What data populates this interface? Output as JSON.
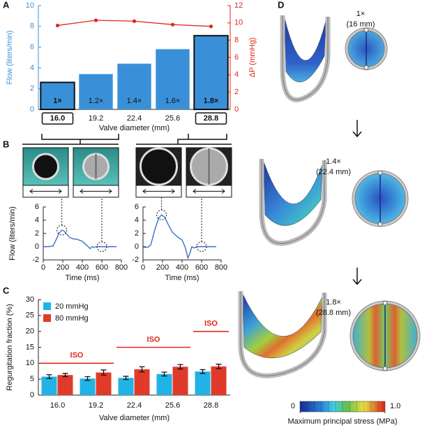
{
  "chart_data": [
    {
      "type": "bar",
      "xlabel": "Valve diameter (mm)",
      "ylabel": "Flow (liters/min)",
      "y2label": "ΔP (mmHg)",
      "categories": [
        "16.0",
        "19.2",
        "22.4",
        "25.6",
        "28.8"
      ],
      "bar_labels": [
        "1×",
        "1.2×",
        "1.4×",
        "1.6×",
        "1.8×"
      ],
      "series": [
        {
          "color": "#3a90d8",
          "values": [
            2.6,
            3.4,
            4.4,
            5.8,
            7.1
          ]
        },
        {
          "type": "line",
          "axis": "y2",
          "color": "#e0261b",
          "values": [
            9.7,
            10.3,
            10.2,
            9.8,
            9.6
          ]
        }
      ],
      "ylim": [
        0,
        10
      ],
      "yticks": [
        0,
        2,
        4,
        6,
        8,
        10
      ],
      "y2lim": [
        0,
        12
      ],
      "y2ticks": [
        0,
        2,
        4,
        6,
        8,
        10,
        12
      ]
    },
    {
      "type": "line",
      "xlabel": "Time (ms)",
      "ylabel": "Flow (liters/min)",
      "color": "#3a70c8",
      "x": [
        0,
        50,
        100,
        130,
        160,
        190,
        210,
        240,
        270,
        300,
        350,
        400,
        430,
        460,
        480,
        500,
        520,
        550,
        600,
        650,
        700,
        750
      ],
      "values": [
        0,
        0,
        0.1,
        1.0,
        2.0,
        2.5,
        2.4,
        1.9,
        1.4,
        1.2,
        1.1,
        0.8,
        0.4,
        0,
        -0.3,
        0,
        -0.1,
        0,
        0,
        0,
        0,
        0
      ],
      "xlim": [
        0,
        800
      ],
      "xticks": [
        0,
        200,
        400,
        600,
        800
      ],
      "ylim": [
        -2,
        6
      ],
      "yticks": [
        -2,
        0,
        2,
        4,
        6
      ]
    },
    {
      "type": "line",
      "xlabel": "Time (ms)",
      "color": "#3a70c8",
      "x": [
        0,
        50,
        80,
        120,
        160,
        190,
        220,
        260,
        300,
        350,
        400,
        430,
        460,
        480,
        500,
        520,
        550,
        600,
        650,
        700,
        750
      ],
      "values": [
        -0.1,
        -0.1,
        0.3,
        2.5,
        4.3,
        4.8,
        4.5,
        3.3,
        2.2,
        1.5,
        1.0,
        0,
        -1.7,
        -1.0,
        0,
        -0.2,
        0,
        0,
        0,
        0,
        0
      ],
      "xlim": [
        0,
        800
      ],
      "xticks": [
        0,
        200,
        400,
        600,
        800
      ],
      "ylim": [
        -2,
        6
      ],
      "yticks": [
        -2,
        0,
        2,
        4,
        6
      ]
    },
    {
      "type": "grouped-bar",
      "xlabel": "Valve diameter (mm)",
      "ylabel": "Regurgitation fraction (%)",
      "categories": [
        "16.0",
        "19.2",
        "22.4",
        "25.6",
        "28.8"
      ],
      "series": [
        {
          "name": "20 mmHg",
          "color": "#21b3e6",
          "values": [
            5.8,
            5.2,
            5.4,
            6.6,
            7.4
          ],
          "errors": [
            0.6,
            0.6,
            0.5,
            0.6,
            0.6
          ]
        },
        {
          "name": "80 mmHg",
          "color": "#e23a2a",
          "values": [
            6.3,
            7.1,
            8.1,
            8.9,
            9.0
          ],
          "errors": [
            0.5,
            0.8,
            0.8,
            0.7,
            0.7
          ]
        }
      ],
      "ylim": [
        0,
        30
      ],
      "yticks": [
        0,
        5,
        10,
        15,
        20,
        25,
        30
      ],
      "annotations": [
        {
          "text": "ISO",
          "value": 10,
          "categories": [
            "16.0",
            "19.2"
          ]
        },
        {
          "text": "ISO",
          "value": 15,
          "categories": [
            "22.4",
            "25.6"
          ]
        },
        {
          "text": "ISO",
          "value": 20,
          "categories": [
            "28.8",
            "28.8"
          ]
        }
      ]
    }
  ],
  "figure": {
    "panel_labels": [
      "A",
      "B",
      "C",
      "D"
    ],
    "stages": [
      {
        "scale": "1×",
        "diameter": "(16 mm)"
      },
      {
        "scale": "1.4×",
        "diameter": "(22.4 mm)"
      },
      {
        "scale": "1.8×",
        "diameter": "(28.8 mm)"
      }
    ],
    "colorbar": {
      "ticks": [
        0,
        {
          "value": 1,
          "label": "1.0"
        }
      ],
      "lim": [
        0,
        1
      ],
      "label": "Maximum principal stress (MPa)"
    }
  }
}
